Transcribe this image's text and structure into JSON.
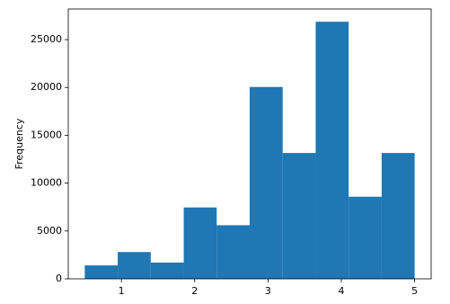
{
  "chart_data": {
    "type": "histogram",
    "y_label": "Frequency",
    "bins": [
      0.5,
      0.95,
      1.4,
      1.85,
      2.3,
      2.75,
      3.2,
      3.65,
      4.1,
      4.55,
      5.0
    ],
    "values": [
      1400,
      2800,
      1700,
      7460,
      5600,
      20050,
      13150,
      26870,
      8580,
      13150
    ],
    "color": "#1f77b4",
    "xlim": [
      0.275,
      5.225
    ],
    "xticks": [
      1,
      2,
      3,
      4,
      5
    ],
    "ylim": [
      0,
      28200
    ],
    "yticks": [
      0,
      5000,
      10000,
      15000,
      20000,
      25000
    ]
  }
}
